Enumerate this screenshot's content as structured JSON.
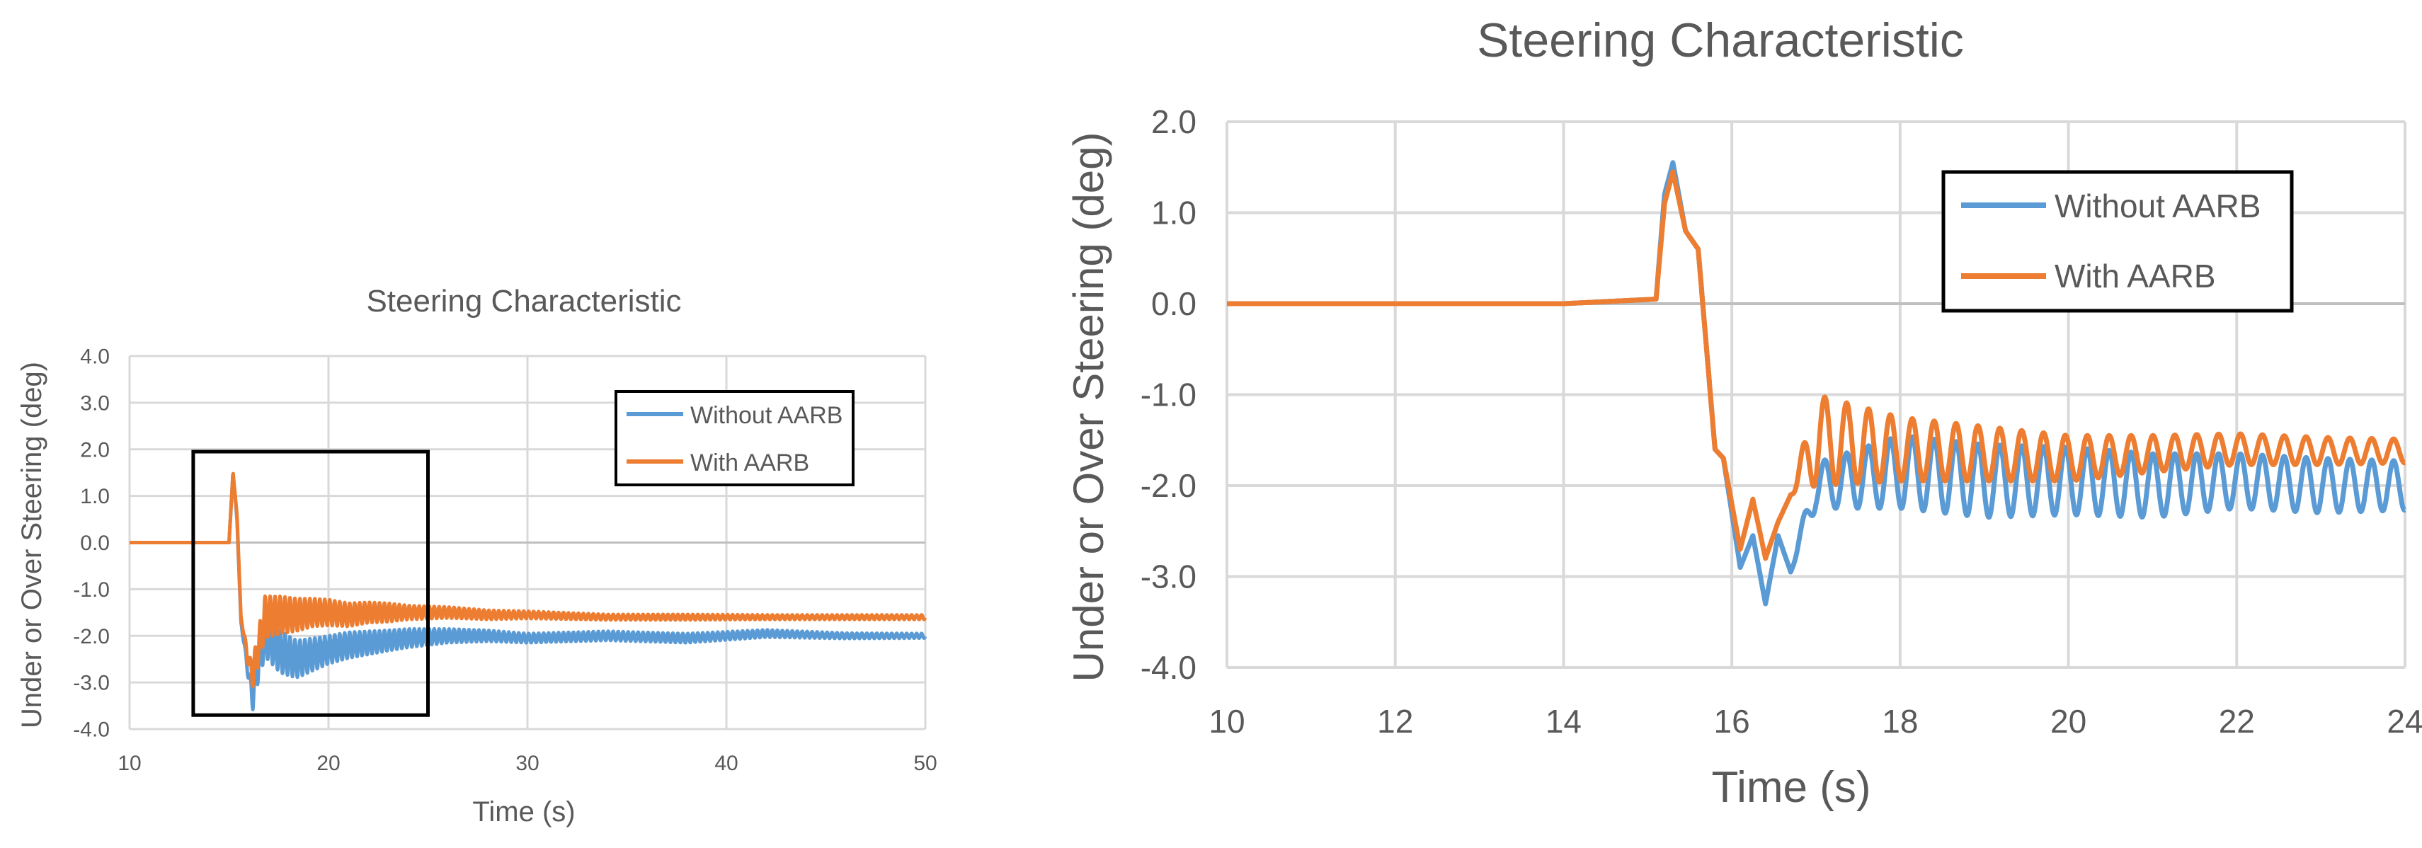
{
  "colors": {
    "without": "#5b9bd5",
    "with": "#ed7d31",
    "grid": "#d9d9d9",
    "text": "#595959",
    "zoom_box": "#000000"
  },
  "chart_data": [
    {
      "type": "line",
      "title": "Steering Characteristic",
      "xlabel": "Time (s)",
      "ylabel": "Under or Over Steering (deg)",
      "xlim": [
        10,
        50
      ],
      "ylim": [
        -4.0,
        4.0
      ],
      "x_ticks": [
        "10",
        "20",
        "30",
        "40",
        "50"
      ],
      "y_ticks": [
        "4.0",
        "3.0",
        "2.0",
        "1.0",
        "0.0",
        "-1.0",
        "-2.0",
        "-3.0",
        "-4.0"
      ],
      "legend": [
        "Without AARB",
        "With AARB"
      ],
      "legend_position": "upper-right",
      "zoom_box": {
        "x_range": [
          13.2,
          25.0
        ],
        "y_range": [
          -3.7,
          1.95
        ]
      },
      "series": [
        {
          "name": "Without AARB",
          "x": [
            10,
            15,
            15.2,
            15.4,
            15.6,
            16.0,
            16.2,
            16.4,
            16.8,
            17.6,
            18.4,
            19.2,
            20.0,
            21.0,
            22.0,
            23.0,
            24.0,
            26.0,
            28.0,
            30.0,
            34.0,
            38.0,
            42.0,
            46.0,
            50.0
          ],
          "y": [
            0.0,
            0.0,
            1.5,
            0.5,
            -1.7,
            -2.9,
            -3.3,
            -2.7,
            -2.0,
            -2.35,
            -2.5,
            -2.4,
            -2.3,
            -2.2,
            -2.15,
            -2.1,
            -2.05,
            -2.0,
            -2.0,
            -2.05,
            -2.0,
            -2.05,
            -1.95,
            -2.0,
            -2.0
          ],
          "amplitude": [
            0,
            0,
            0,
            0,
            0,
            0.15,
            0.3,
            0.4,
            0.45,
            0.45,
            0.4,
            0.35,
            0.3,
            0.28,
            0.25,
            0.22,
            0.2,
            0.15,
            0.12,
            0.1,
            0.1,
            0.1,
            0.08,
            0.06,
            0.05
          ]
        },
        {
          "name": "With AARB",
          "x": [
            10,
            15,
            15.2,
            15.4,
            15.6,
            16.0,
            16.2,
            16.4,
            16.8,
            17.6,
            18.4,
            19.2,
            20.0,
            21.0,
            22.0,
            23.0,
            24.0,
            26.0,
            28.0,
            30.0,
            34.0,
            38.0,
            42.0,
            46.0,
            50.0
          ],
          "y": [
            0.0,
            0.0,
            1.5,
            0.6,
            -1.6,
            -2.6,
            -2.8,
            -2.4,
            -1.6,
            -1.55,
            -1.55,
            -1.5,
            -1.5,
            -1.55,
            -1.5,
            -1.5,
            -1.5,
            -1.5,
            -1.55,
            -1.55,
            -1.6,
            -1.6,
            -1.6,
            -1.6,
            -1.6
          ],
          "amplitude": [
            0,
            0,
            0,
            0,
            0,
            0.15,
            0.3,
            0.35,
            0.45,
            0.4,
            0.35,
            0.3,
            0.28,
            0.25,
            0.22,
            0.2,
            0.15,
            0.12,
            0.1,
            0.08,
            0.06,
            0.06,
            0.05,
            0.05,
            0.05
          ]
        }
      ]
    },
    {
      "type": "line",
      "title": "Steering Characteristic",
      "xlabel": "Time (s)",
      "ylabel": "Under or Over Steering (deg)",
      "xlim": [
        10,
        24
      ],
      "ylim": [
        -4.0,
        2.0
      ],
      "x_ticks": [
        "10",
        "12",
        "14",
        "16",
        "18",
        "20",
        "22",
        "24"
      ],
      "y_ticks": [
        "2.0",
        "1.0",
        "0.0",
        "-1.0",
        "-2.0",
        "-3.0",
        "-4.0"
      ],
      "legend": [
        "Without AARB",
        "With AARB"
      ],
      "legend_position": "upper-right",
      "series": [
        {
          "name": "Without AARB",
          "x": [
            10,
            12,
            14,
            15.1,
            15.2,
            15.3,
            15.45,
            15.6,
            15.8,
            15.9,
            16.1,
            16.25,
            16.4,
            16.55,
            16.7,
            17.0,
            18.0,
            19.0,
            20.0,
            21.0,
            22.0,
            23.0,
            24.0
          ],
          "y": [
            0.0,
            0.0,
            0.0,
            0.05,
            1.2,
            1.55,
            0.8,
            0.6,
            -1.6,
            -1.7,
            -2.9,
            -2.55,
            -3.3,
            -2.55,
            -2.95,
            -2.0,
            -1.85,
            -1.95,
            -1.95,
            -2.0,
            -1.95,
            -2.0,
            -2.0
          ],
          "amplitude": [
            0,
            0,
            0,
            0,
            0,
            0,
            0,
            0,
            0,
            0,
            0,
            0,
            0,
            0,
            0,
            0.25,
            0.4,
            0.4,
            0.37,
            0.35,
            0.3,
            0.3,
            0.27
          ]
        },
        {
          "name": "With AARB",
          "x": [
            10,
            12,
            14,
            15.1,
            15.2,
            15.3,
            15.45,
            15.6,
            15.8,
            15.9,
            16.1,
            16.25,
            16.4,
            16.55,
            16.7,
            17.0,
            18.0,
            19.0,
            20.0,
            21.0,
            22.0,
            23.0,
            24.0
          ],
          "y": [
            0.0,
            0.0,
            0.0,
            0.05,
            1.1,
            1.45,
            0.8,
            0.6,
            -1.6,
            -1.7,
            -2.7,
            -2.15,
            -2.8,
            -2.4,
            -2.1,
            -1.5,
            -1.6,
            -1.65,
            -1.7,
            -1.65,
            -1.6,
            -1.62,
            -1.62
          ],
          "amplitude": [
            0,
            0,
            0,
            0,
            0,
            0,
            0,
            0,
            0,
            0,
            0,
            0,
            0,
            0,
            0,
            0.5,
            0.35,
            0.3,
            0.25,
            0.2,
            0.17,
            0.15,
            0.13
          ]
        }
      ]
    }
  ]
}
